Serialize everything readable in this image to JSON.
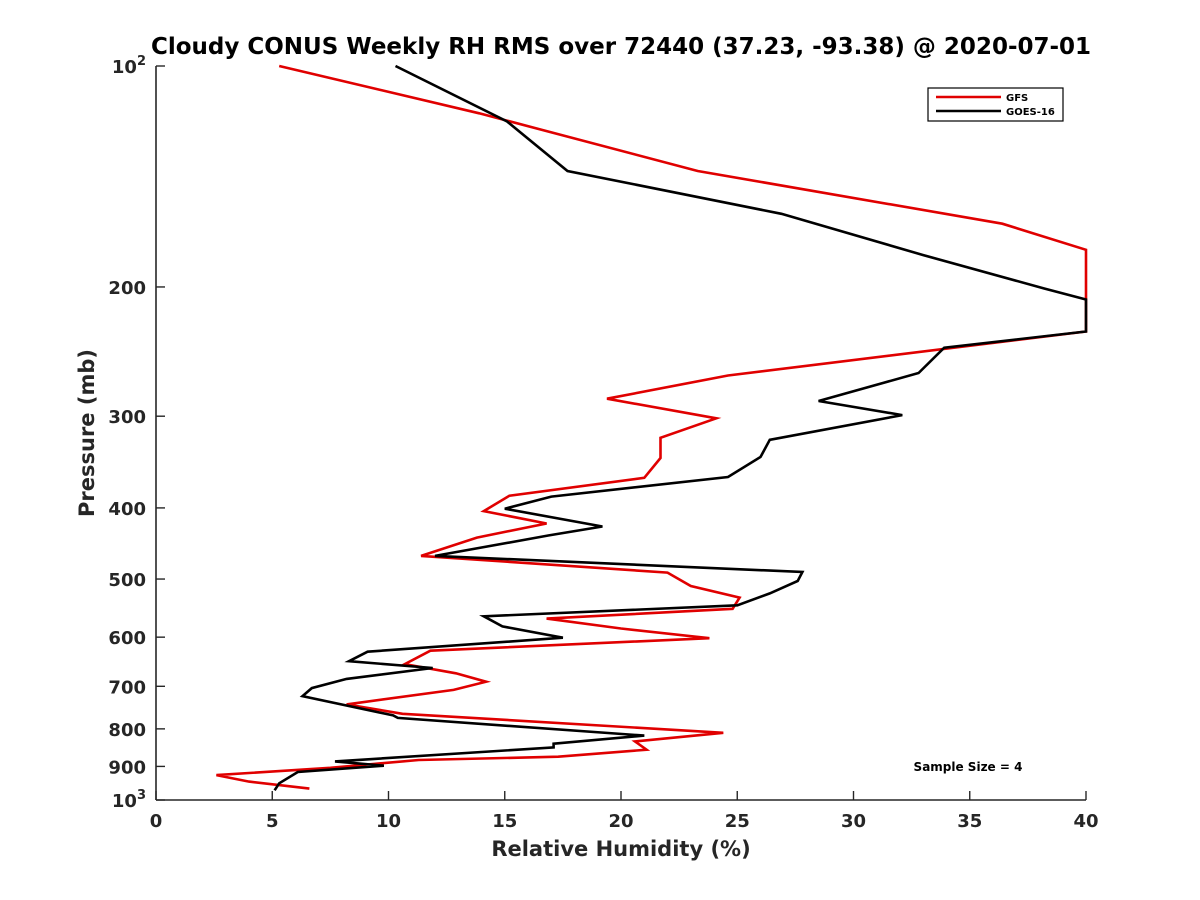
{
  "chart_data": {
    "type": "line",
    "title": "Cloudy CONUS Weekly RH RMS over 72440 (37.23, -93.38) @ 2020-07-01",
    "xlabel": "Relative Humidity (%)",
    "ylabel": "Pressure (mb)",
    "xlim": [
      0,
      40
    ],
    "ylim": [
      100,
      1000
    ],
    "y_scale": "log",
    "y_reversed": true,
    "grid": false,
    "legend_position": "top-right",
    "x_ticks": [
      {
        "value": 0,
        "label": "0"
      },
      {
        "value": 5,
        "label": "5"
      },
      {
        "value": 10,
        "label": "10"
      },
      {
        "value": 15,
        "label": "15"
      },
      {
        "value": 20,
        "label": "20"
      },
      {
        "value": 25,
        "label": "25"
      },
      {
        "value": 30,
        "label": "30"
      },
      {
        "value": 35,
        "label": "35"
      },
      {
        "value": 40,
        "label": "40"
      }
    ],
    "y_ticks": [
      {
        "value": 100,
        "base": "10",
        "exp": "2"
      },
      {
        "value": 200,
        "label": "200"
      },
      {
        "value": 300,
        "label": "300"
      },
      {
        "value": 400,
        "label": "400"
      },
      {
        "value": 500,
        "label": "500"
      },
      {
        "value": 600,
        "label": "600"
      },
      {
        "value": 700,
        "label": "700"
      },
      {
        "value": 800,
        "label": "800"
      },
      {
        "value": 900,
        "label": "900"
      },
      {
        "value": 1000,
        "base": "10",
        "exp": "3"
      }
    ],
    "series": [
      {
        "name": "GFS",
        "color": "#e00000",
        "points": [
          [
            5.3,
            100
          ],
          [
            13.9,
            116
          ],
          [
            23.3,
            139
          ],
          [
            36.4,
            164
          ],
          [
            40,
            178
          ],
          [
            40,
            230
          ],
          [
            24.6,
            264
          ],
          [
            19.4,
            284
          ],
          [
            24.1,
            302
          ],
          [
            21.7,
            321
          ],
          [
            21.7,
            342
          ],
          [
            21.0,
            364
          ],
          [
            15.2,
            385
          ],
          [
            14.1,
            404
          ],
          [
            16.8,
            420
          ],
          [
            13.8,
            439
          ],
          [
            11.4,
            465
          ],
          [
            22.0,
            490
          ],
          [
            23.0,
            511
          ],
          [
            25.1,
            530
          ],
          [
            24.8,
            549
          ],
          [
            16.8,
            566
          ],
          [
            20.0,
            584
          ],
          [
            23.8,
            602
          ],
          [
            11.8,
            626
          ],
          [
            10.7,
            653
          ],
          [
            12.9,
            672
          ],
          [
            14.2,
            690
          ],
          [
            12.8,
            708
          ],
          [
            8.2,
            741
          ],
          [
            10.6,
            763
          ],
          [
            24.4,
            810
          ],
          [
            20.6,
            832
          ],
          [
            21.1,
            854
          ],
          [
            17.3,
            873
          ],
          [
            11.3,
            882
          ],
          [
            7.5,
            904
          ],
          [
            2.6,
            925
          ],
          [
            4.0,
            944
          ],
          [
            6.6,
            965
          ]
        ]
      },
      {
        "name": "GOES-16",
        "color": "#000000",
        "points": [
          [
            10.3,
            100
          ],
          [
            15.1,
            119
          ],
          [
            17.7,
            139
          ],
          [
            26.9,
            159
          ],
          [
            33.0,
            181
          ],
          [
            38.2,
            201
          ],
          [
            40,
            208
          ],
          [
            40,
            230
          ],
          [
            33.9,
            242
          ],
          [
            32.8,
            262
          ],
          [
            28.5,
            286
          ],
          [
            32.1,
            299
          ],
          [
            26.4,
            323
          ],
          [
            26.0,
            341
          ],
          [
            24.6,
            363
          ],
          [
            17.0,
            386
          ],
          [
            15.0,
            401
          ],
          [
            19.2,
            424
          ],
          [
            16.9,
            436
          ],
          [
            12.0,
            465
          ],
          [
            27.8,
            489
          ],
          [
            27.6,
            503
          ],
          [
            26.4,
            523
          ],
          [
            25.0,
            543
          ],
          [
            14.1,
            562
          ],
          [
            14.9,
            580
          ],
          [
            17.5,
            601
          ],
          [
            9.1,
            628
          ],
          [
            8.3,
            647
          ],
          [
            11.9,
            661
          ],
          [
            8.2,
            684
          ],
          [
            6.7,
            704
          ],
          [
            6.3,
            722
          ],
          [
            10.2,
            767
          ],
          [
            10.4,
            773
          ],
          [
            21.0,
            817
          ],
          [
            17.1,
            838
          ],
          [
            17.1,
            848
          ],
          [
            7.7,
            886
          ],
          [
            9.8,
            898
          ],
          [
            6.1,
            916
          ],
          [
            5.3,
            949
          ],
          [
            5.1,
            970
          ]
        ]
      }
    ],
    "annotation": "Sample Size = 4"
  }
}
